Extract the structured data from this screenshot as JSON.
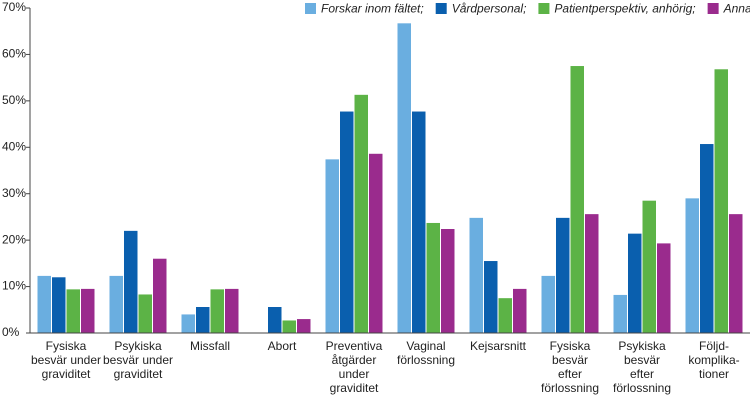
{
  "chart_data": {
    "type": "bar",
    "categories": [
      "Fysiska\nbesvär under\ngraviditet",
      "Psykiska\nbesvär under\ngraviditet",
      "Missfall",
      "Abort",
      "Preventiva\nåtgärder\nunder\ngraviditet",
      "Vaginal\nförlossning",
      "Kejsarsnitt",
      "Fysiska\nbesvär\nefter\nförlossning",
      "Psykiska\nbesvär\nefter\nförlossning",
      "Följd-\nkomplika-\ntioner"
    ],
    "series": [
      {
        "name": "Forskar inom fältet;",
        "color": "#6aaee0",
        "values": [
          12.3,
          12.3,
          4,
          0,
          37.4,
          66.7,
          24.8,
          12.3,
          8.2,
          29
        ]
      },
      {
        "name": "Vårdpersonal;",
        "color": "#0a5fae",
        "values": [
          12,
          22,
          5.6,
          5.6,
          47.7,
          47.7,
          15.5,
          24.8,
          21.4,
          40.7
        ]
      },
      {
        "name": "Patientperspektiv, anhörig;",
        "color": "#5cb346",
        "values": [
          9.4,
          8.3,
          9.4,
          2.7,
          51.3,
          23.7,
          7.5,
          57.5,
          28.5,
          56.8
        ]
      },
      {
        "name": "Annat",
        "color": "#9a2b8d",
        "values": [
          9.5,
          16,
          9.5,
          3,
          38.6,
          22.4,
          9.5,
          25.6,
          19.3,
          25.6
        ]
      }
    ],
    "ylim": [
      0,
      70
    ],
    "yticks": [
      {
        "value": 0,
        "label": "0%"
      },
      {
        "value": 10,
        "label": "10%"
      },
      {
        "value": 20,
        "label": "20%"
      },
      {
        "value": 30,
        "label": "30%"
      },
      {
        "value": 40,
        "label": "40%"
      },
      {
        "value": 50,
        "label": "50%"
      },
      {
        "value": 60,
        "label": "60%"
      },
      {
        "value": 70,
        "label": "70%"
      }
    ],
    "legend": "top-right"
  }
}
